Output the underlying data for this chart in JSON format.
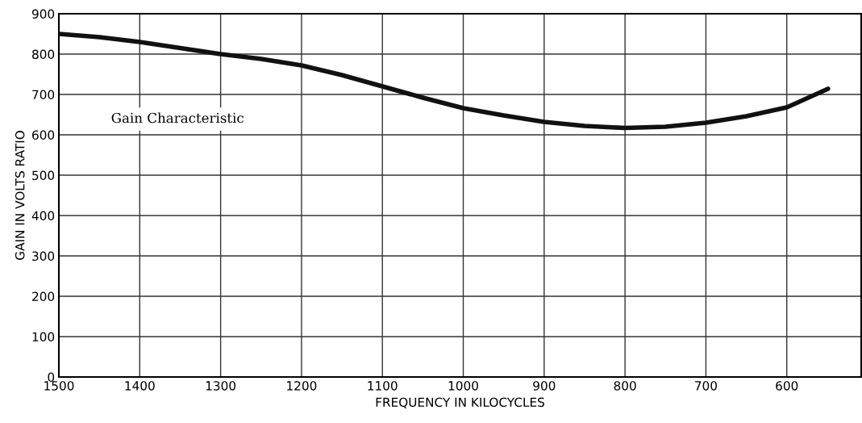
{
  "chart_data": {
    "type": "line",
    "xlabel": "FREQUENCY IN KILOCYCLES",
    "ylabel": "GAIN IN VOLTS RATIO",
    "annotations": [
      "Gain Characteristic"
    ],
    "x": [
      1500,
      1450,
      1400,
      1350,
      1300,
      1250,
      1200,
      1150,
      1100,
      1050,
      1000,
      950,
      900,
      850,
      800,
      750,
      700,
      650,
      600,
      549
    ],
    "series": [
      {
        "color": "#111111",
        "values": [
          850,
          842,
          830,
          815,
          800,
          788,
          772,
          748,
          720,
          692,
          666,
          648,
          632,
          622,
          617,
          620,
          630,
          646,
          668,
          714
        ]
      }
    ],
    "xlim": [
      1500,
      508
    ],
    "ylim": [
      0,
      900
    ],
    "xticks": [
      1500,
      1400,
      1300,
      1200,
      1100,
      1000,
      900,
      800,
      700,
      600
    ],
    "yticks": [
      0,
      100,
      200,
      300,
      400,
      500,
      600,
      700,
      800,
      900
    ],
    "grid": true,
    "legend": false,
    "marker": "none",
    "line_style": "solid"
  }
}
